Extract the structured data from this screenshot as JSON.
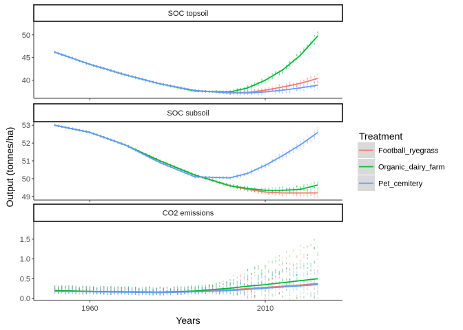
{
  "chart_data": {
    "type": "line",
    "xlabel": "Years",
    "ylabel": "Output (tonnes/ha)",
    "x_range": [
      1944,
      2032
    ],
    "x_ticks": [
      1960,
      2010
    ],
    "legend": {
      "title": "Treatment",
      "placement": "right",
      "entries": [
        {
          "name": "Football_ryegrass",
          "color": "#F8766D"
        },
        {
          "name": "Organic_dairy_farm",
          "color": "#00BA38"
        },
        {
          "name": "Pet_cemitery",
          "color": "#619CFF"
        }
      ]
    },
    "panels": [
      {
        "title": "SOC topsoil",
        "ylim": [
          36,
          53
        ],
        "y_ticks": [
          40,
          45,
          50
        ],
        "series": [
          {
            "name": "Football_ryegrass",
            "x": [
              1950,
              1960,
              1970,
              1980,
              1990,
              2000,
              2005,
              2010,
              2015,
              2020,
              2025
            ],
            "y": [
              46.2,
              43.5,
              41.2,
              39.2,
              37.7,
              37.2,
              37.3,
              37.8,
              38.5,
              39.3,
              40.4
            ]
          },
          {
            "name": "Organic_dairy_farm",
            "x": [
              1950,
              1960,
              1970,
              1980,
              1990,
              2000,
              2005,
              2010,
              2015,
              2020,
              2025
            ],
            "y": [
              46.2,
              43.5,
              41.2,
              39.2,
              37.6,
              37.4,
              38.3,
              40.0,
              42.3,
              45.5,
              49.8
            ]
          },
          {
            "name": "Pet_cemitery",
            "x": [
              1950,
              1960,
              1970,
              1980,
              1990,
              2000,
              2005,
              2010,
              2015,
              2020,
              2025
            ],
            "y": [
              46.2,
              43.5,
              41.2,
              39.2,
              37.7,
              37.2,
              37.2,
              37.4,
              37.8,
              38.3,
              38.9
            ]
          }
        ]
      },
      {
        "title": "SOC subsoil",
        "ylim": [
          48.8,
          53.2
        ],
        "y_ticks": [
          49,
          50,
          51,
          52,
          53
        ],
        "series": [
          {
            "name": "Football_ryegrass",
            "x": [
              1950,
              1960,
              1970,
              1980,
              1990,
              2000,
              2005,
              2010,
              2015,
              2020,
              2025
            ],
            "y": [
              53.0,
              52.6,
              51.9,
              51.0,
              50.2,
              49.6,
              49.4,
              49.25,
              49.2,
              49.2,
              49.2
            ]
          },
          {
            "name": "Organic_dairy_farm",
            "x": [
              1950,
              1960,
              1970,
              1980,
              1990,
              2000,
              2005,
              2010,
              2015,
              2020,
              2025
            ],
            "y": [
              53.0,
              52.6,
              51.9,
              51.0,
              50.2,
              49.6,
              49.45,
              49.35,
              49.35,
              49.4,
              49.65
            ]
          },
          {
            "name": "Pet_cemitery",
            "x": [
              1950,
              1960,
              1970,
              1980,
              1990,
              2000,
              2005,
              2010,
              2015,
              2020,
              2025
            ],
            "y": [
              53.0,
              52.6,
              51.9,
              50.9,
              50.1,
              50.05,
              50.3,
              50.75,
              51.3,
              51.9,
              52.6
            ]
          }
        ]
      },
      {
        "title": "CO2 emissions",
        "ylim": [
          -0.05,
          1.95
        ],
        "y_ticks": [
          0.0,
          0.5,
          1.0,
          1.5
        ],
        "y_tick_labels": [
          "0.0",
          "0.5",
          "1.0",
          "1.5"
        ],
        "series": [
          {
            "name": "Football_ryegrass",
            "x": [
              1950,
              1960,
              1970,
              1980,
              1990,
              2000,
              2005,
              2010,
              2015,
              2020,
              2025
            ],
            "y": [
              0.2,
              0.18,
              0.17,
              0.16,
              0.18,
              0.22,
              0.25,
              0.28,
              0.31,
              0.34,
              0.38
            ]
          },
          {
            "name": "Organic_dairy_farm",
            "x": [
              1950,
              1960,
              1970,
              1980,
              1990,
              2000,
              2005,
              2010,
              2015,
              2020,
              2025
            ],
            "y": [
              0.2,
              0.18,
              0.17,
              0.16,
              0.19,
              0.26,
              0.31,
              0.35,
              0.4,
              0.45,
              0.5
            ]
          },
          {
            "name": "Pet_cemitery",
            "x": [
              1950,
              1960,
              1970,
              1980,
              1990,
              2000,
              2005,
              2010,
              2015,
              2020,
              2025
            ],
            "y": [
              0.18,
              0.17,
              0.16,
              0.15,
              0.17,
              0.2,
              0.23,
              0.26,
              0.29,
              0.32,
              0.35
            ]
          }
        ]
      }
    ]
  }
}
